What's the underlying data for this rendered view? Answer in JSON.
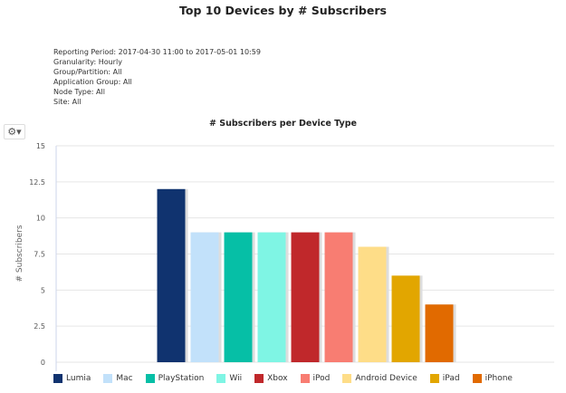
{
  "report": {
    "title": "Top 10 Devices by # Subscribers",
    "meta": [
      "Reporting Period: 2017-04-30 11:00 to 2017-05-01 10:59",
      "Granularity: Hourly",
      "Group/Partition: All",
      "Application Group: All",
      "Node Type: All",
      "Site: All"
    ],
    "settings_icon": "gear-icon"
  },
  "chart_data": {
    "type": "bar",
    "title": "# Subscribers per Device Type",
    "ylabel": "# Subscribers",
    "xlabel": "",
    "ylim": [
      0,
      15
    ],
    "yticks": [
      "0",
      "2.5",
      "5",
      "7.5",
      "10",
      "12.5",
      "15"
    ],
    "grid": true,
    "legend": "bottom",
    "series": [
      {
        "name": "Lumia",
        "value": 12,
        "color": "#10336f"
      },
      {
        "name": "Mac",
        "value": 9,
        "color": "#c2e1fa"
      },
      {
        "name": "PlayStation",
        "value": 9,
        "color": "#06bfa6"
      },
      {
        "name": "Wii",
        "value": 9,
        "color": "#7ff5e4"
      },
      {
        "name": "Xbox",
        "value": 9,
        "color": "#c0282b"
      },
      {
        "name": "iPod",
        "value": 9,
        "color": "#f87d72"
      },
      {
        "name": "Android Device",
        "value": 8,
        "color": "#fedd88"
      },
      {
        "name": "iPad",
        "value": 6,
        "color": "#e2a600"
      },
      {
        "name": "iPhone",
        "value": 4,
        "color": "#e16a00"
      }
    ]
  }
}
